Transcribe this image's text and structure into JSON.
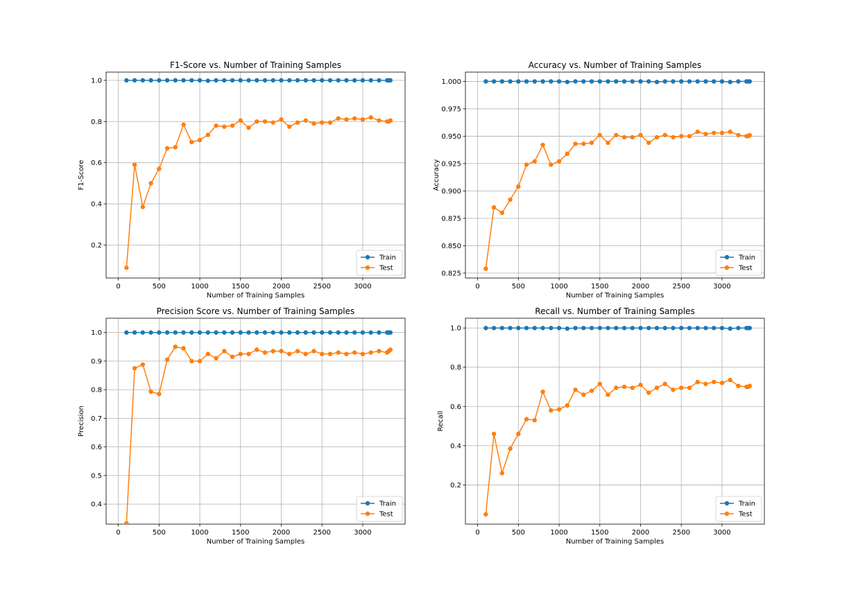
{
  "chart_data": [
    {
      "type": "line",
      "title": "F1-Score vs. Number of Training Samples",
      "xlabel": "Number of Training Samples",
      "ylabel": "F1-Score",
      "xlim": [
        -150,
        3520
      ],
      "ylim": [
        0.04,
        1.04
      ],
      "xticks": [
        0,
        500,
        1000,
        1500,
        2000,
        2500,
        3000
      ],
      "yticks": [
        0.2,
        0.4,
        0.6,
        0.8,
        1.0
      ],
      "ytick_labels": [
        "0.2",
        "0.4",
        "0.6",
        "0.8",
        "1.0"
      ],
      "grid": true,
      "legend": "lower-right",
      "x": [
        100,
        200,
        300,
        400,
        500,
        600,
        700,
        800,
        900,
        1000,
        1100,
        1200,
        1300,
        1400,
        1500,
        1600,
        1700,
        1800,
        1900,
        2000,
        2100,
        2200,
        2300,
        2400,
        2500,
        2600,
        2700,
        2800,
        2900,
        3000,
        3100,
        3200,
        3300,
        3320,
        3340
      ],
      "series": [
        {
          "name": "Train",
          "color": "#1f77b4",
          "values": [
            1.0,
            1.0,
            1.0,
            1.0,
            1.0,
            1.0,
            1.0,
            1.0,
            1.0,
            1.0,
            0.998,
            1.0,
            1.0,
            1.0,
            1.0,
            1.0,
            1.0,
            1.0,
            1.0,
            1.0,
            1.0,
            1.0,
            1.0,
            1.0,
            1.0,
            1.0,
            1.0,
            1.0,
            1.0,
            1.0,
            1.0,
            1.0,
            1.0,
            1.0,
            1.0
          ]
        },
        {
          "name": "Test",
          "color": "#ff7f0e",
          "values": [
            0.09,
            0.59,
            0.385,
            0.5,
            0.57,
            0.67,
            0.675,
            0.785,
            0.7,
            0.71,
            0.735,
            0.78,
            0.775,
            0.78,
            0.805,
            0.77,
            0.8,
            0.8,
            0.795,
            0.81,
            0.775,
            0.795,
            0.805,
            0.79,
            0.795,
            0.795,
            0.815,
            0.81,
            0.815,
            0.81,
            0.82,
            0.805,
            0.8,
            0.8,
            0.805
          ]
        }
      ]
    },
    {
      "type": "line",
      "title": "Accuracy vs. Number of Training Samples",
      "xlabel": "Number of Training Samples",
      "ylabel": "Accuracy",
      "xlim": [
        -150,
        3520
      ],
      "ylim": [
        0.8205,
        1.0085
      ],
      "xticks": [
        0,
        500,
        1000,
        1500,
        2000,
        2500,
        3000
      ],
      "yticks": [
        0.825,
        0.85,
        0.875,
        0.9,
        0.925,
        0.95,
        0.975,
        1.0
      ],
      "ytick_labels": [
        "0.825",
        "0.850",
        "0.875",
        "0.900",
        "0.925",
        "0.950",
        "0.975",
        "1.000"
      ],
      "grid": true,
      "legend": "lower-right",
      "x": [
        100,
        200,
        300,
        400,
        500,
        600,
        700,
        800,
        900,
        1000,
        1100,
        1200,
        1300,
        1400,
        1500,
        1600,
        1700,
        1800,
        1900,
        2000,
        2100,
        2200,
        2300,
        2400,
        2500,
        2600,
        2700,
        2800,
        2900,
        3000,
        3100,
        3200,
        3300,
        3320,
        3340
      ],
      "series": [
        {
          "name": "Train",
          "color": "#1f77b4",
          "values": [
            1.0,
            1.0,
            1.0,
            1.0,
            1.0,
            1.0,
            1.0,
            1.0,
            1.0,
            1.0,
            0.9995,
            1.0,
            1.0,
            1.0,
            1.0,
            1.0,
            1.0,
            1.0,
            1.0,
            1.0,
            1.0,
            0.9995,
            1.0,
            1.0,
            1.0,
            1.0,
            1.0,
            1.0,
            1.0,
            1.0,
            0.9995,
            1.0,
            1.0,
            1.0,
            1.0
          ]
        },
        {
          "name": "Test",
          "color": "#ff7f0e",
          "values": [
            0.829,
            0.885,
            0.88,
            0.892,
            0.904,
            0.924,
            0.927,
            0.942,
            0.924,
            0.927,
            0.934,
            0.943,
            0.943,
            0.944,
            0.951,
            0.944,
            0.951,
            0.949,
            0.949,
            0.951,
            0.944,
            0.949,
            0.951,
            0.949,
            0.95,
            0.95,
            0.954,
            0.952,
            0.953,
            0.953,
            0.954,
            0.951,
            0.95,
            0.95,
            0.951
          ]
        }
      ]
    },
    {
      "type": "line",
      "title": "Precision Score vs. Number of Training Samples",
      "xlabel": "Number of Training Samples",
      "ylabel": "Precision",
      "xlim": [
        -150,
        3520
      ],
      "ylim": [
        0.33,
        1.05
      ],
      "xticks": [
        0,
        500,
        1000,
        1500,
        2000,
        2500,
        3000
      ],
      "yticks": [
        0.4,
        0.5,
        0.6,
        0.7,
        0.8,
        0.9,
        1.0
      ],
      "ytick_labels": [
        "0.4",
        "0.5",
        "0.6",
        "0.7",
        "0.8",
        "0.9",
        "1.0"
      ],
      "grid": true,
      "legend": "lower-right",
      "x": [
        100,
        200,
        300,
        400,
        500,
        600,
        700,
        800,
        900,
        1000,
        1100,
        1200,
        1300,
        1400,
        1500,
        1600,
        1700,
        1800,
        1900,
        2000,
        2100,
        2200,
        2300,
        2400,
        2500,
        2600,
        2700,
        2800,
        2900,
        3000,
        3100,
        3200,
        3300,
        3320,
        3340
      ],
      "series": [
        {
          "name": "Train",
          "color": "#1f77b4",
          "values": [
            1.0,
            1.0,
            1.0,
            1.0,
            1.0,
            1.0,
            1.0,
            1.0,
            1.0,
            1.0,
            1.0,
            1.0,
            1.0,
            1.0,
            1.0,
            1.0,
            1.0,
            1.0,
            1.0,
            1.0,
            1.0,
            1.0,
            1.0,
            1.0,
            1.0,
            1.0,
            1.0,
            1.0,
            1.0,
            1.0,
            1.0,
            1.0,
            1.0,
            1.0,
            1.0
          ]
        },
        {
          "name": "Test",
          "color": "#ff7f0e",
          "values": [
            0.333,
            0.875,
            0.888,
            0.793,
            0.785,
            0.905,
            0.95,
            0.945,
            0.9,
            0.9,
            0.925,
            0.91,
            0.935,
            0.915,
            0.925,
            0.925,
            0.94,
            0.93,
            0.935,
            0.935,
            0.925,
            0.935,
            0.925,
            0.935,
            0.925,
            0.925,
            0.93,
            0.925,
            0.93,
            0.925,
            0.93,
            0.935,
            0.93,
            0.935,
            0.94
          ]
        }
      ]
    },
    {
      "type": "line",
      "title": "Recall vs. Number of Training Samples",
      "xlabel": "Number of Training Samples",
      "ylabel": "Recall",
      "xlim": [
        -150,
        3520
      ],
      "ylim": [
        0.0,
        1.05
      ],
      "xticks": [
        0,
        500,
        1000,
        1500,
        2000,
        2500,
        3000
      ],
      "yticks": [
        0.2,
        0.4,
        0.6,
        0.8,
        1.0
      ],
      "ytick_labels": [
        "0.2",
        "0.4",
        "0.6",
        "0.8",
        "1.0"
      ],
      "grid": true,
      "legend": "lower-right",
      "x": [
        100,
        200,
        300,
        400,
        500,
        600,
        700,
        800,
        900,
        1000,
        1100,
        1200,
        1300,
        1400,
        1500,
        1600,
        1700,
        1800,
        1900,
        2000,
        2100,
        2200,
        2300,
        2400,
        2500,
        2600,
        2700,
        2800,
        2900,
        3000,
        3100,
        3200,
        3300,
        3320,
        3340
      ],
      "series": [
        {
          "name": "Train",
          "color": "#1f77b4",
          "values": [
            1.0,
            1.0,
            1.0,
            1.0,
            1.0,
            1.0,
            1.0,
            1.0,
            1.0,
            1.0,
            0.997,
            1.0,
            1.0,
            1.0,
            1.0,
            1.0,
            1.0,
            1.0,
            1.0,
            1.0,
            1.0,
            1.0,
            1.0,
            1.0,
            1.0,
            1.0,
            1.0,
            1.0,
            1.0,
            1.0,
            0.997,
            1.0,
            1.0,
            1.0,
            1.0
          ]
        },
        {
          "name": "Test",
          "color": "#ff7f0e",
          "values": [
            0.05,
            0.46,
            0.26,
            0.385,
            0.46,
            0.535,
            0.53,
            0.675,
            0.58,
            0.585,
            0.605,
            0.685,
            0.66,
            0.68,
            0.715,
            0.66,
            0.695,
            0.7,
            0.695,
            0.71,
            0.67,
            0.695,
            0.715,
            0.685,
            0.695,
            0.695,
            0.725,
            0.715,
            0.725,
            0.72,
            0.735,
            0.705,
            0.7,
            0.7,
            0.705
          ]
        }
      ]
    }
  ]
}
